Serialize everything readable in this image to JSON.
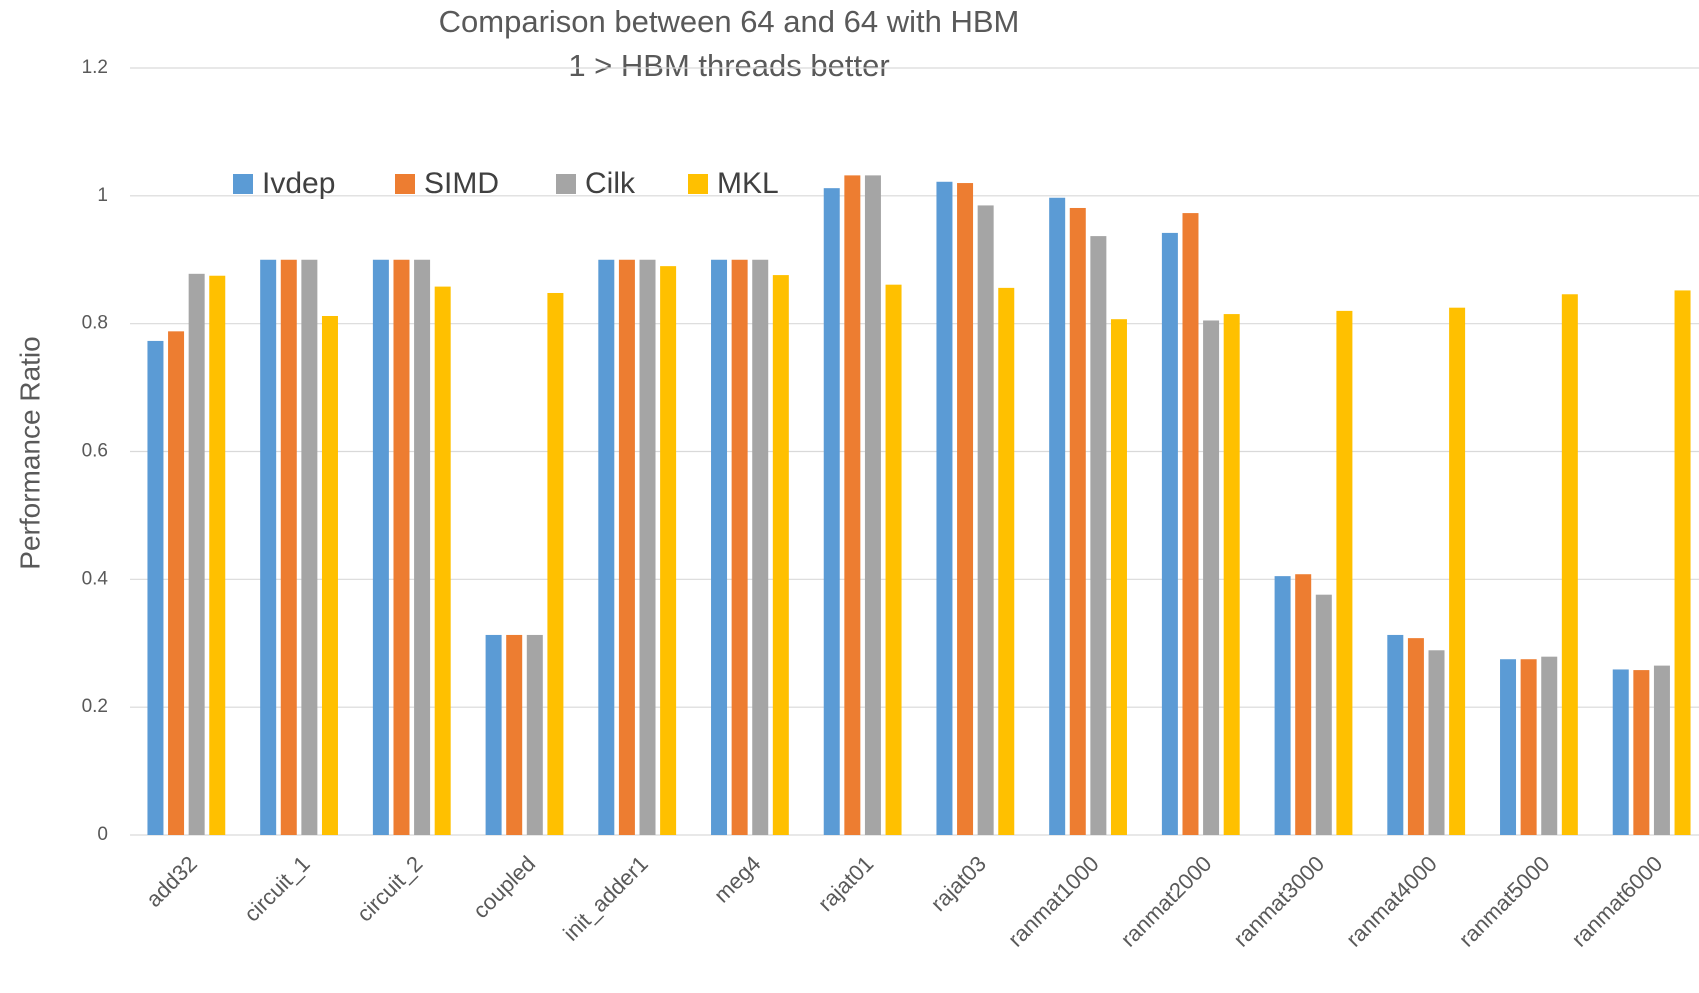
{
  "chart_data": {
    "type": "bar",
    "title": "Comparison between 64 and 64 with HBM",
    "subtitle": "1 >  HBM threads better",
    "y_label": "Performance Ratio",
    "categories": [
      "add32",
      "circuit_1",
      "circuit_2",
      "coupled",
      "init_adder1",
      "meg4",
      "rajat01",
      "rajat03",
      "ranmat1000",
      "ranmat2000",
      "ranmat3000",
      "ranmat4000",
      "ranmat5000",
      "ranmat6000"
    ],
    "series": [
      {
        "name": "Ivdep",
        "color": "#5b9bd5",
        "values": [
          0.773,
          0.9,
          0.9,
          0.313,
          0.9,
          0.9,
          1.012,
          1.022,
          0.997,
          0.942,
          0.405,
          0.313,
          0.275,
          0.259
        ]
      },
      {
        "name": "SIMD",
        "color": "#ed7d31",
        "values": [
          0.788,
          0.9,
          0.9,
          0.313,
          0.9,
          0.9,
          1.032,
          1.02,
          0.981,
          0.973,
          0.408,
          0.308,
          0.275,
          0.258
        ]
      },
      {
        "name": "Cilk",
        "color": "#a5a5a5",
        "values": [
          0.878,
          0.9,
          0.9,
          0.313,
          0.9,
          0.9,
          1.032,
          0.985,
          0.937,
          0.805,
          0.376,
          0.289,
          0.279,
          0.265
        ]
      },
      {
        "name": "MKL",
        "color": "#ffc000",
        "values": [
          0.875,
          0.812,
          0.858,
          0.848,
          0.89,
          0.876,
          0.861,
          0.856,
          0.807,
          0.815,
          0.82,
          0.825,
          0.846,
          0.852
        ]
      }
    ],
    "ylim": [
      0,
      1.2
    ],
    "yticks": [
      0,
      0.2,
      0.4,
      0.6,
      0.8,
      1,
      1.2
    ],
    "grid": true,
    "legend": "top-left"
  }
}
